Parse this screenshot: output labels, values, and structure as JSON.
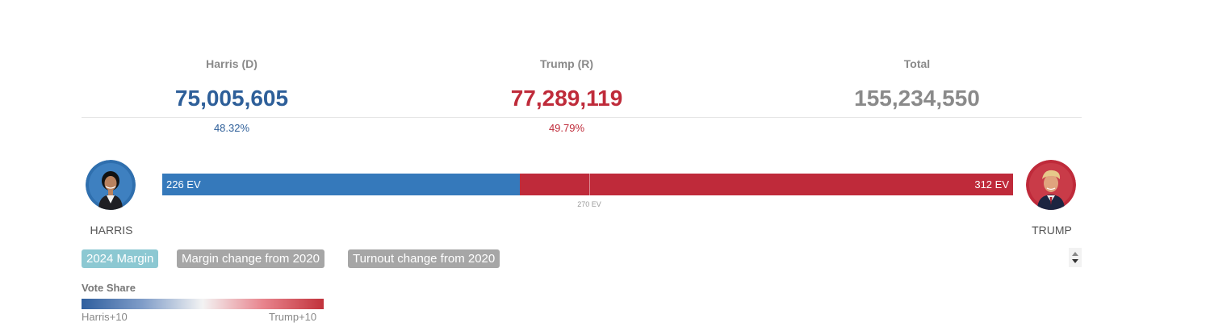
{
  "summary": {
    "harris": {
      "label": "Harris (D)",
      "total": "75,005,605",
      "pct": "48.32%",
      "color": "#2e5f99"
    },
    "trump": {
      "label": "Trump (R)",
      "total": "77,289,119",
      "pct": "49.79%",
      "color": "#bf2b3a"
    },
    "total": {
      "label": "Total",
      "total": "155,234,550",
      "color": "#8a8a8a"
    }
  },
  "electoral": {
    "harris": {
      "name": "HARRIS",
      "ev_label": "226 EV",
      "ev": 226,
      "color": "#3579bb"
    },
    "trump": {
      "name": "TRUMP",
      "ev_label": "312 EV",
      "ev": 312,
      "color": "#bf2a3a"
    },
    "threshold_label": "270 EV",
    "threshold": 270,
    "total_ev": 538
  },
  "tabs": [
    {
      "label": "2024 Margin",
      "active": true,
      "color": "#8cc8d2"
    },
    {
      "label": "Margin change from 2020",
      "active": false,
      "color": "#a6a6a6"
    },
    {
      "label": "Turnout change from 2020",
      "active": false,
      "color": "#a6a6a6"
    }
  ],
  "legend": {
    "title": "Vote Share",
    "left_label": "Harris+10",
    "right_label": "Trump+10",
    "left_color": "#2f5f9e",
    "mid_color": "#f3f3f3",
    "right_color": "#c1323b"
  },
  "icons": {
    "stepper_up": "caret-up-icon",
    "stepper_down": "caret-down-icon"
  }
}
